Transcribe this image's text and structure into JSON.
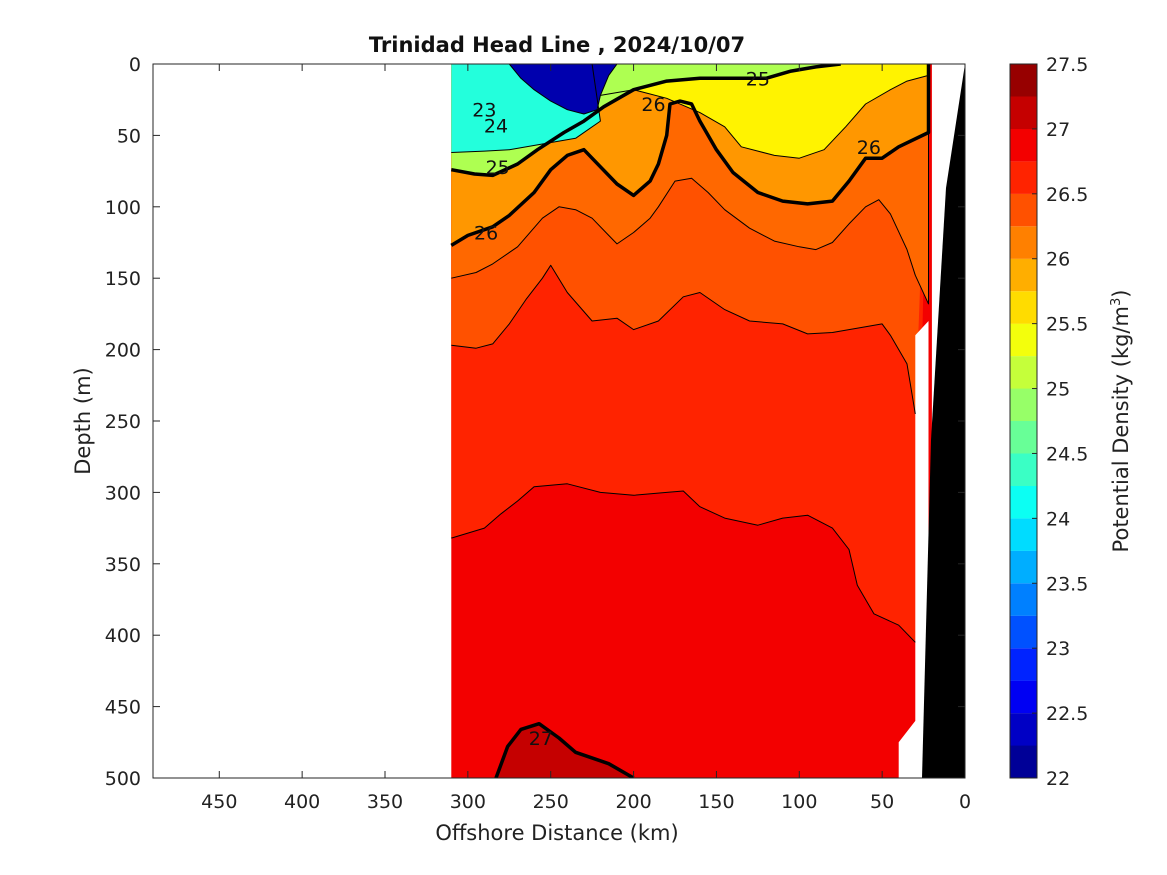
{
  "chart_data": {
    "type": "contour",
    "title": "Trinidad Head Line , 2024/10/07",
    "xlabel": "Offshore Distance (km)",
    "ylabel": "Depth (m)",
    "xlim": [
      490,
      0
    ],
    "ylim": [
      0,
      500
    ],
    "x_reversed": true,
    "y_reversed": true,
    "xticks": [
      450,
      400,
      350,
      300,
      250,
      200,
      150,
      100,
      50,
      0
    ],
    "yticks": [
      0,
      50,
      100,
      150,
      200,
      250,
      300,
      350,
      400,
      450,
      500
    ],
    "colorbar": {
      "label": "Potential Density (kg/m",
      "label_superscript": "3",
      "label_suffix": ")",
      "min": 22,
      "max": 27.5,
      "step": 0.25,
      "ticks": [
        27.5,
        27,
        26.5,
        26,
        25.5,
        25,
        24.5,
        24,
        23.5,
        23,
        22.5,
        22
      ],
      "colormap": "jet"
    },
    "data_extent_km": [
      310,
      20
    ],
    "bathymetry_color": "#000000",
    "contour_labels": [
      {
        "value": "23",
        "x": 290,
        "y": 32
      },
      {
        "value": "24",
        "x": 283,
        "y": 43
      },
      {
        "value": "25",
        "x": 282,
        "y": 72
      },
      {
        "value": "26",
        "x": 289,
        "y": 118
      },
      {
        "value": "26",
        "x": 188,
        "y": 28
      },
      {
        "value": "25",
        "x": 125,
        "y": 10
      },
      {
        "value": "26",
        "x": 58,
        "y": 58
      },
      {
        "value": "27",
        "x": 256,
        "y": 472
      }
    ],
    "contours": [
      {
        "level": 26.75,
        "bold": false,
        "points": [
          [
            310,
            332
          ],
          [
            290,
            325
          ],
          [
            280,
            315
          ],
          [
            270,
            306
          ],
          [
            260,
            296
          ],
          [
            240,
            294
          ],
          [
            220,
            300
          ],
          [
            200,
            302
          ],
          [
            180,
            300
          ],
          [
            170,
            299
          ],
          [
            160,
            310
          ],
          [
            145,
            318
          ],
          [
            125,
            323
          ],
          [
            110,
            318
          ],
          [
            95,
            316
          ],
          [
            80,
            325
          ],
          [
            70,
            340
          ],
          [
            65,
            365
          ],
          [
            55,
            385
          ],
          [
            40,
            393
          ],
          [
            30,
            405
          ]
        ]
      },
      {
        "level": 26.5,
        "bold": false,
        "points": [
          [
            310,
            197
          ],
          [
            295,
            199
          ],
          [
            285,
            196
          ],
          [
            275,
            182
          ],
          [
            265,
            165
          ],
          [
            255,
            150
          ],
          [
            250,
            141
          ],
          [
            240,
            160
          ],
          [
            225,
            180
          ],
          [
            210,
            178
          ],
          [
            200,
            186
          ],
          [
            185,
            180
          ],
          [
            170,
            163
          ],
          [
            160,
            160
          ],
          [
            145,
            172
          ],
          [
            130,
            180
          ],
          [
            110,
            182
          ],
          [
            95,
            189
          ],
          [
            80,
            188
          ],
          [
            60,
            184
          ],
          [
            50,
            182
          ],
          [
            45,
            190
          ],
          [
            35,
            210
          ],
          [
            30,
            245
          ]
        ]
      },
      {
        "level": 27.0,
        "bold": true,
        "points": [
          [
            283,
            500
          ],
          [
            276,
            478
          ],
          [
            268,
            466
          ],
          [
            257,
            462
          ],
          [
            245,
            472
          ],
          [
            235,
            482
          ],
          [
            215,
            490
          ],
          [
            200,
            500
          ]
        ]
      }
    ],
    "filled_bands": [
      {
        "level": 22.25,
        "boundary": [
          [
            310,
            0
          ],
          [
            290,
            0
          ],
          [
            275,
            0
          ],
          [
            268,
            10
          ],
          [
            260,
            18
          ],
          [
            250,
            26
          ],
          [
            240,
            32
          ],
          [
            230,
            35
          ],
          [
            222,
            32
          ],
          [
            220,
            22
          ],
          [
            215,
            8
          ],
          [
            210,
            0
          ]
        ]
      },
      {
        "level": 24.25,
        "boundary": [
          [
            310,
            0
          ],
          [
            250,
            0
          ],
          [
            225,
            0
          ],
          [
            220,
            40
          ],
          [
            235,
            52
          ],
          [
            255,
            56
          ],
          [
            275,
            60
          ],
          [
            290,
            61
          ],
          [
            310,
            62
          ]
        ]
      },
      {
        "level": 25.0,
        "boundary": [
          [
            310,
            74
          ],
          [
            296,
            77
          ],
          [
            285,
            78
          ],
          [
            270,
            70
          ],
          [
            258,
            60
          ],
          [
            242,
            48
          ],
          [
            230,
            40
          ],
          [
            218,
            30
          ],
          [
            200,
            18
          ],
          [
            180,
            12
          ],
          [
            160,
            10
          ],
          [
            140,
            10
          ],
          [
            120,
            10
          ],
          [
            105,
            5
          ],
          [
            90,
            2
          ],
          [
            75,
            0
          ],
          [
            310,
            0
          ]
        ]
      },
      {
        "level": 25.5,
        "boundary": [
          [
            220,
            22
          ],
          [
            200,
            18
          ],
          [
            180,
            24
          ],
          [
            160,
            34
          ],
          [
            145,
            44
          ],
          [
            135,
            58
          ],
          [
            115,
            64
          ],
          [
            100,
            66
          ],
          [
            85,
            60
          ],
          [
            72,
            44
          ],
          [
            60,
            28
          ],
          [
            45,
            18
          ],
          [
            35,
            12
          ],
          [
            22,
            8
          ],
          [
            22,
            0
          ],
          [
            175,
            0
          ],
          [
            200,
            0
          ]
        ]
      },
      {
        "level": 26.0,
        "boundary": [
          [
            310,
            127
          ],
          [
            300,
            120
          ],
          [
            285,
            114
          ],
          [
            275,
            106
          ],
          [
            260,
            90
          ],
          [
            250,
            74
          ],
          [
            240,
            64
          ],
          [
            230,
            60
          ],
          [
            220,
            72
          ],
          [
            210,
            84
          ],
          [
            200,
            92
          ],
          [
            190,
            82
          ],
          [
            185,
            70
          ],
          [
            180,
            50
          ],
          [
            178,
            28
          ],
          [
            172,
            26
          ],
          [
            165,
            28
          ],
          [
            160,
            40
          ],
          [
            150,
            60
          ],
          [
            140,
            76
          ],
          [
            125,
            90
          ],
          [
            110,
            96
          ],
          [
            95,
            98
          ],
          [
            80,
            96
          ],
          [
            70,
            82
          ],
          [
            60,
            66
          ],
          [
            50,
            66
          ],
          [
            40,
            58
          ],
          [
            22,
            48
          ],
          [
            22,
            0
          ],
          [
            310,
            0
          ]
        ]
      },
      {
        "level": 26.25,
        "boundary": [
          [
            310,
            150
          ],
          [
            295,
            146
          ],
          [
            285,
            140
          ],
          [
            270,
            128
          ],
          [
            255,
            108
          ],
          [
            245,
            100
          ],
          [
            235,
            102
          ],
          [
            225,
            108
          ],
          [
            215,
            120
          ],
          [
            210,
            126
          ],
          [
            200,
            118
          ],
          [
            190,
            108
          ],
          [
            185,
            100
          ],
          [
            175,
            82
          ],
          [
            165,
            80
          ],
          [
            155,
            90
          ],
          [
            145,
            102
          ],
          [
            130,
            115
          ],
          [
            115,
            124
          ],
          [
            100,
            128
          ],
          [
            90,
            130
          ],
          [
            80,
            125
          ],
          [
            70,
            112
          ],
          [
            60,
            100
          ],
          [
            52,
            95
          ],
          [
            45,
            105
          ],
          [
            35,
            130
          ],
          [
            30,
            148
          ],
          [
            22,
            168
          ],
          [
            22,
            0
          ],
          [
            310,
            0
          ]
        ]
      }
    ]
  }
}
